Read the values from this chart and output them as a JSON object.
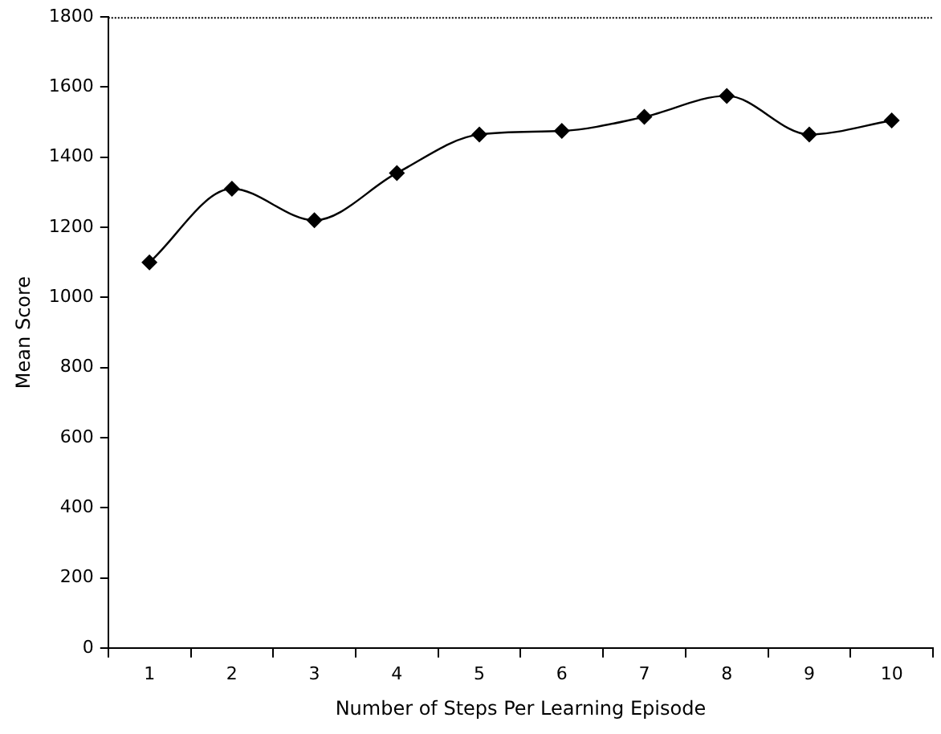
{
  "chart_data": {
    "type": "line",
    "xlabel": "Number of Steps Per Learning Episode",
    "ylabel": "Mean Score",
    "categories": [
      "1",
      "2",
      "3",
      "4",
      "5",
      "6",
      "7",
      "8",
      "9",
      "10"
    ],
    "series": [
      {
        "color": "#000000",
        "values": [
          1100,
          1310,
          1220,
          1355,
          1465,
          1475,
          1515,
          1575,
          1465,
          1505
        ]
      }
    ],
    "ylim": [
      0,
      1800
    ],
    "yticks": [
      0,
      200,
      400,
      600,
      800,
      1000,
      1200,
      1400,
      1600,
      1800
    ],
    "grid": false,
    "legend": false,
    "marker": "diamond",
    "line_style": "solid"
  }
}
